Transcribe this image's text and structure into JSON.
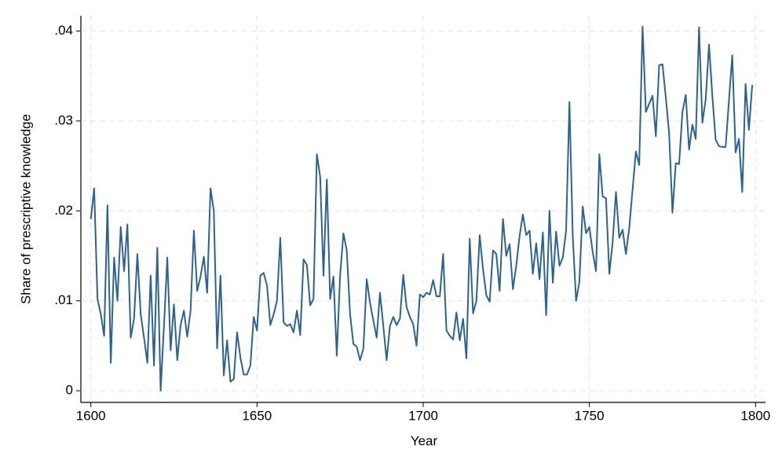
{
  "chart_data": {
    "type": "line",
    "x_label": "Year",
    "y_label": "Share of prescriptive knowledge",
    "x": [
      1600,
      1601,
      1602,
      1603,
      1604,
      1605,
      1606,
      1607,
      1608,
      1609,
      1610,
      1611,
      1612,
      1613,
      1614,
      1615,
      1616,
      1617,
      1618,
      1619,
      1620,
      1621,
      1622,
      1623,
      1624,
      1625,
      1626,
      1627,
      1628,
      1629,
      1630,
      1631,
      1632,
      1633,
      1634,
      1635,
      1636,
      1637,
      1638,
      1639,
      1640,
      1641,
      1642,
      1643,
      1644,
      1645,
      1646,
      1647,
      1648,
      1649,
      1650,
      1651,
      1652,
      1653,
      1654,
      1655,
      1656,
      1657,
      1658,
      1659,
      1660,
      1661,
      1662,
      1663,
      1664,
      1665,
      1666,
      1667,
      1668,
      1669,
      1670,
      1671,
      1672,
      1673,
      1674,
      1675,
      1676,
      1677,
      1678,
      1679,
      1680,
      1681,
      1682,
      1683,
      1684,
      1685,
      1686,
      1687,
      1688,
      1689,
      1690,
      1691,
      1692,
      1693,
      1694,
      1695,
      1696,
      1697,
      1698,
      1699,
      1700,
      1701,
      1702,
      1703,
      1704,
      1705,
      1706,
      1707,
      1708,
      1709,
      1710,
      1711,
      1712,
      1713,
      1714,
      1715,
      1716,
      1717,
      1718,
      1719,
      1720,
      1721,
      1722,
      1723,
      1724,
      1725,
      1726,
      1727,
      1728,
      1729,
      1730,
      1731,
      1732,
      1733,
      1734,
      1735,
      1736,
      1737,
      1738,
      1739,
      1740,
      1741,
      1742,
      1743,
      1744,
      1745,
      1746,
      1747,
      1748,
      1749,
      1750,
      1751,
      1752,
      1753,
      1754,
      1755,
      1756,
      1757,
      1758,
      1759,
      1760,
      1761,
      1762,
      1763,
      1764,
      1765,
      1766,
      1767,
      1768,
      1769,
      1770,
      1771,
      1772,
      1773,
      1774,
      1775,
      1776,
      1777,
      1778,
      1779,
      1780,
      1781,
      1782,
      1783,
      1784,
      1785,
      1786,
      1787,
      1788,
      1789,
      1790,
      1791,
      1792,
      1793,
      1794,
      1795,
      1796,
      1797,
      1798,
      1799
    ],
    "values": [
      0.0191,
      0.0225,
      0.0102,
      0.0085,
      0.0061,
      0.0206,
      0.0031,
      0.0148,
      0.01,
      0.0182,
      0.0133,
      0.0185,
      0.0059,
      0.008,
      0.0152,
      0.0085,
      0.0059,
      0.0031,
      0.0128,
      0.0028,
      0.0159,
      0.0,
      0.0072,
      0.0148,
      0.0045,
      0.0096,
      0.0034,
      0.0073,
      0.0089,
      0.006,
      0.0089,
      0.0178,
      0.0111,
      0.0127,
      0.0149,
      0.0109,
      0.0225,
      0.02,
      0.0047,
      0.0128,
      0.0017,
      0.0056,
      0.001,
      0.0013,
      0.0065,
      0.0037,
      0.0018,
      0.0018,
      0.0028,
      0.0082,
      0.0067,
      0.0128,
      0.0131,
      0.0117,
      0.0073,
      0.0085,
      0.01,
      0.017,
      0.0076,
      0.0072,
      0.0074,
      0.0065,
      0.0089,
      0.0062,
      0.0146,
      0.014,
      0.0095,
      0.0102,
      0.0263,
      0.0238,
      0.0128,
      0.0235,
      0.0102,
      0.0127,
      0.0039,
      0.0128,
      0.0175,
      0.0156,
      0.0085,
      0.0052,
      0.0049,
      0.0034,
      0.0047,
      0.0124,
      0.0098,
      0.0078,
      0.0059,
      0.0109,
      0.0072,
      0.0034,
      0.0072,
      0.0082,
      0.0073,
      0.008,
      0.0129,
      0.0093,
      0.0082,
      0.0074,
      0.005,
      0.0107,
      0.0104,
      0.0109,
      0.0107,
      0.0123,
      0.0105,
      0.0105,
      0.0152,
      0.0067,
      0.0061,
      0.0057,
      0.0087,
      0.0056,
      0.008,
      0.0036,
      0.0169,
      0.0086,
      0.01,
      0.0173,
      0.0135,
      0.0106,
      0.0099,
      0.0156,
      0.0152,
      0.0111,
      0.0191,
      0.015,
      0.0163,
      0.0113,
      0.0139,
      0.0172,
      0.0196,
      0.0173,
      0.0178,
      0.013,
      0.0164,
      0.0124,
      0.0176,
      0.0084,
      0.02,
      0.012,
      0.0177,
      0.0139,
      0.0148,
      0.0178,
      0.0321,
      0.0172,
      0.01,
      0.0121,
      0.0205,
      0.0175,
      0.0182,
      0.0154,
      0.0133,
      0.0263,
      0.0216,
      0.0214,
      0.013,
      0.0165,
      0.0221,
      0.017,
      0.0179,
      0.0152,
      0.0181,
      0.0224,
      0.0266,
      0.0251,
      0.0405,
      0.031,
      0.0319,
      0.0328,
      0.0283,
      0.0362,
      0.0363,
      0.0326,
      0.0286,
      0.0198,
      0.0253,
      0.0252,
      0.031,
      0.0329,
      0.0268,
      0.0296,
      0.028,
      0.0404,
      0.0298,
      0.0324,
      0.0385,
      0.0328,
      0.0279,
      0.0272,
      0.0271,
      0.0271,
      0.0323,
      0.0373,
      0.0265,
      0.028,
      0.0221,
      0.0341,
      0.029,
      0.034
    ],
    "color": "#2c6390",
    "xlim": [
      1597,
      1803
    ],
    "ylim": [
      -0.0013,
      0.0417
    ],
    "xticks": [
      1600,
      1650,
      1700,
      1750,
      1800
    ],
    "yticks": [
      0,
      {
        "value": 0.01,
        "label": ".01"
      },
      {
        "value": 0.02,
        "label": ".02"
      },
      {
        "value": 0.03,
        "label": ".03"
      },
      {
        "value": 0.04,
        "label": ".04"
      }
    ],
    "grid": true
  }
}
